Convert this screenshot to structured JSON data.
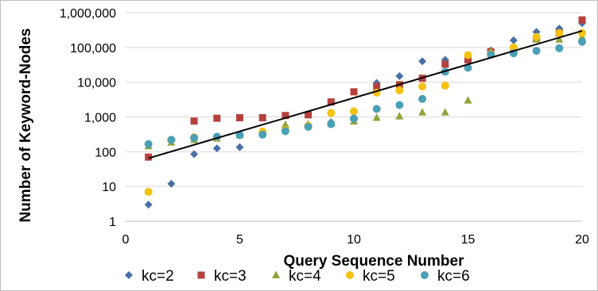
{
  "chart_data": {
    "type": "scatter",
    "title": "",
    "xlabel": "Query Sequence Number",
    "ylabel": "Number of Keyword-Nodes",
    "xlim": [
      0,
      20
    ],
    "ylim": [
      1,
      1000000
    ],
    "yscale": "log",
    "x_ticks": [
      "0",
      "5",
      "10",
      "15",
      "20"
    ],
    "y_ticks": [
      "1",
      "10",
      "100",
      "1,000",
      "10,000",
      "100,000",
      "1,000,000"
    ],
    "grid": "horizontal",
    "legend_position": "bottom",
    "series": [
      {
        "name": "kc=2",
        "color": "#4a6fa5",
        "marker": "diamond",
        "x": [
          1,
          2,
          3,
          4,
          5,
          6,
          7,
          8,
          9,
          10,
          11,
          12,
          13,
          14,
          15,
          16,
          17,
          18,
          19,
          20
        ],
        "y": [
          3,
          12,
          85,
          125,
          135,
          320,
          420,
          600,
          700,
          850,
          9500,
          15000,
          40000,
          44000,
          58000,
          82000,
          160000,
          280000,
          350000,
          500000
        ]
      },
      {
        "name": "kc=3",
        "color": "#b5413c",
        "marker": "square",
        "x": [
          1,
          3,
          4,
          5,
          6,
          7,
          8,
          9,
          10,
          11,
          12,
          13,
          14,
          15,
          16,
          17,
          18,
          19,
          20
        ],
        "y": [
          70,
          760,
          920,
          950,
          950,
          1100,
          1150,
          2700,
          5300,
          7500,
          8500,
          13000,
          33000,
          44000,
          75000,
          85000,
          180000,
          260000,
          620000
        ]
      },
      {
        "name": "kc=4",
        "color": "#8ea53b",
        "marker": "triangle",
        "x": [
          1,
          2,
          3,
          4,
          5,
          6,
          7,
          8,
          9,
          10,
          11,
          12,
          13,
          14,
          15,
          16,
          17,
          18,
          19,
          20
        ],
        "y": [
          145,
          185,
          220,
          240,
          300,
          360,
          600,
          620,
          650,
          750,
          950,
          1050,
          1350,
          1350,
          3000,
          75000,
          90000,
          170000,
          170000,
          200000
        ]
      },
      {
        "name": "kc=5",
        "color": "#f5c211",
        "marker": "circle",
        "x": [
          1,
          2,
          3,
          4,
          5,
          6,
          7,
          8,
          9,
          10,
          11,
          12,
          13,
          14,
          15,
          16,
          17,
          18,
          19,
          20
        ],
        "y": [
          7,
          220,
          260,
          260,
          300,
          380,
          420,
          560,
          1300,
          1450,
          5000,
          5800,
          7500,
          8000,
          60000,
          65000,
          100000,
          200000,
          260000,
          260000
        ]
      },
      {
        "name": "kc=6",
        "color": "#4aa0b5",
        "marker": "circle",
        "x": [
          1,
          2,
          3,
          4,
          5,
          6,
          7,
          8,
          9,
          10,
          11,
          12,
          13,
          14,
          15,
          16,
          17,
          18,
          19,
          20
        ],
        "y": [
          165,
          220,
          250,
          270,
          300,
          310,
          390,
          520,
          620,
          900,
          1700,
          2200,
          3300,
          20000,
          26000,
          62000,
          68000,
          80000,
          95000,
          145000
        ]
      }
    ],
    "trendline": {
      "x": [
        1,
        20
      ],
      "y": [
        65,
        300000
      ],
      "color": "#000000"
    }
  }
}
